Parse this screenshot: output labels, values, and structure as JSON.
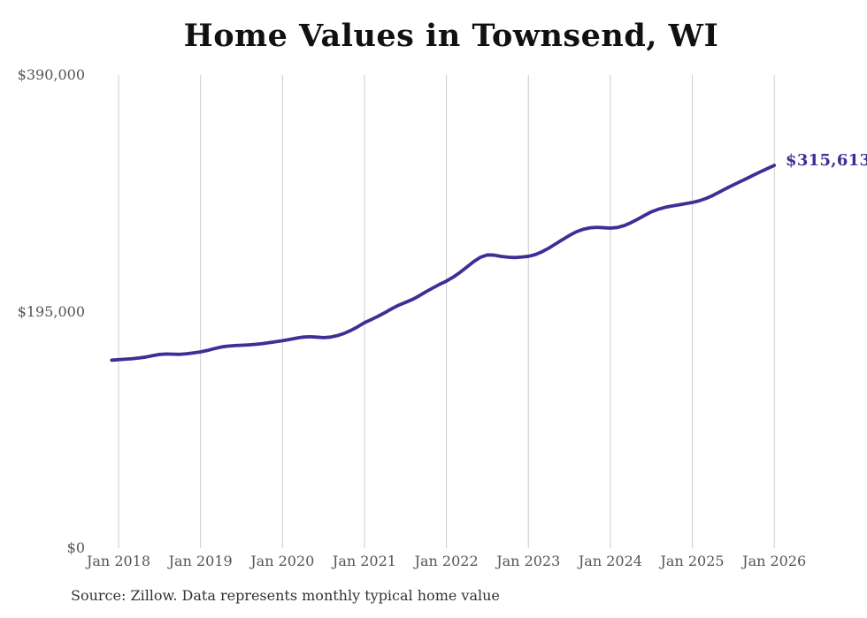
{
  "chart": {
    "end_label": "$315,613",
    "line_color": "#3a3096",
    "grid_color": "#cccccc",
    "source_note": "Source: Zillow. Data represents monthly typical home value"
  },
  "chart_data": {
    "type": "line",
    "title": "Home Values in Townsend, WI",
    "xlabel": "",
    "ylabel": "",
    "ylim": [
      0,
      390000
    ],
    "grid": "vertical-only",
    "legend": "none",
    "y_ticks": [
      {
        "label": "$390,000",
        "value": 390000
      },
      {
        "label": "$195,000",
        "value": 195000
      },
      {
        "label": "$0",
        "value": 0
      }
    ],
    "x_ticks": [
      "Jan 2018",
      "Jan 2019",
      "Jan 2020",
      "Jan 2021",
      "Jan 2022",
      "Jan 2023",
      "Jan 2024",
      "Jan 2025",
      "Jan 2026"
    ],
    "end_annotation": {
      "text": "$315,613",
      "value": 315613,
      "x": "2026-01"
    },
    "series": [
      {
        "name": "Monthly typical home value",
        "x": [
          "2017-12",
          "2018-01",
          "2018-02",
          "2018-03",
          "2018-04",
          "2018-05",
          "2018-06",
          "2018-07",
          "2018-08",
          "2018-09",
          "2018-10",
          "2018-11",
          "2018-12",
          "2019-01",
          "2019-02",
          "2019-03",
          "2019-04",
          "2019-05",
          "2019-06",
          "2019-07",
          "2019-08",
          "2019-09",
          "2019-10",
          "2019-11",
          "2019-12",
          "2020-01",
          "2020-02",
          "2020-03",
          "2020-04",
          "2020-05",
          "2020-06",
          "2020-07",
          "2020-08",
          "2020-09",
          "2020-10",
          "2020-11",
          "2020-12",
          "2021-01",
          "2021-02",
          "2021-03",
          "2021-04",
          "2021-05",
          "2021-06",
          "2021-07",
          "2021-08",
          "2021-09",
          "2021-10",
          "2021-11",
          "2021-12",
          "2022-01",
          "2022-02",
          "2022-03",
          "2022-04",
          "2022-05",
          "2022-06",
          "2022-07",
          "2022-08",
          "2022-09",
          "2022-10",
          "2022-11",
          "2022-12",
          "2023-01",
          "2023-02",
          "2023-03",
          "2023-04",
          "2023-05",
          "2023-06",
          "2023-07",
          "2023-08",
          "2023-09",
          "2023-10",
          "2023-11",
          "2023-12",
          "2024-01",
          "2024-02",
          "2024-03",
          "2024-04",
          "2024-05",
          "2024-06",
          "2024-07",
          "2024-08",
          "2024-09",
          "2024-10",
          "2024-11",
          "2024-12",
          "2025-01",
          "2025-02",
          "2025-03",
          "2025-04",
          "2025-05",
          "2025-06",
          "2025-07",
          "2025-08",
          "2025-09",
          "2025-10",
          "2025-11",
          "2025-12",
          "2026-01"
        ],
        "values": [
          155000,
          155400,
          155800,
          156200,
          156800,
          157600,
          158700,
          159700,
          160100,
          159900,
          159800,
          160300,
          161000,
          161800,
          163000,
          164500,
          165800,
          166600,
          167000,
          167300,
          167600,
          168000,
          168600,
          169400,
          170200,
          171000,
          172000,
          173100,
          174000,
          174300,
          174000,
          173600,
          174000,
          175200,
          177000,
          179500,
          182500,
          185900,
          188500,
          191200,
          194200,
          197400,
          200300,
          202600,
          205000,
          208000,
          211400,
          214500,
          217500,
          220200,
          223500,
          227400,
          231800,
          236300,
          239900,
          241800,
          241600,
          240600,
          239900,
          239600,
          240000,
          240600,
          242000,
          244400,
          247400,
          250900,
          254400,
          257800,
          260800,
          262900,
          264100,
          264500,
          264200,
          263900,
          264400,
          265900,
          268300,
          271200,
          274300,
          277300,
          279400,
          281000,
          282100,
          283000,
          284000,
          285000,
          286400,
          288300,
          290800,
          293700,
          296700,
          299500,
          302200,
          304900,
          307700,
          310400,
          313000,
          315613
        ]
      }
    ]
  }
}
